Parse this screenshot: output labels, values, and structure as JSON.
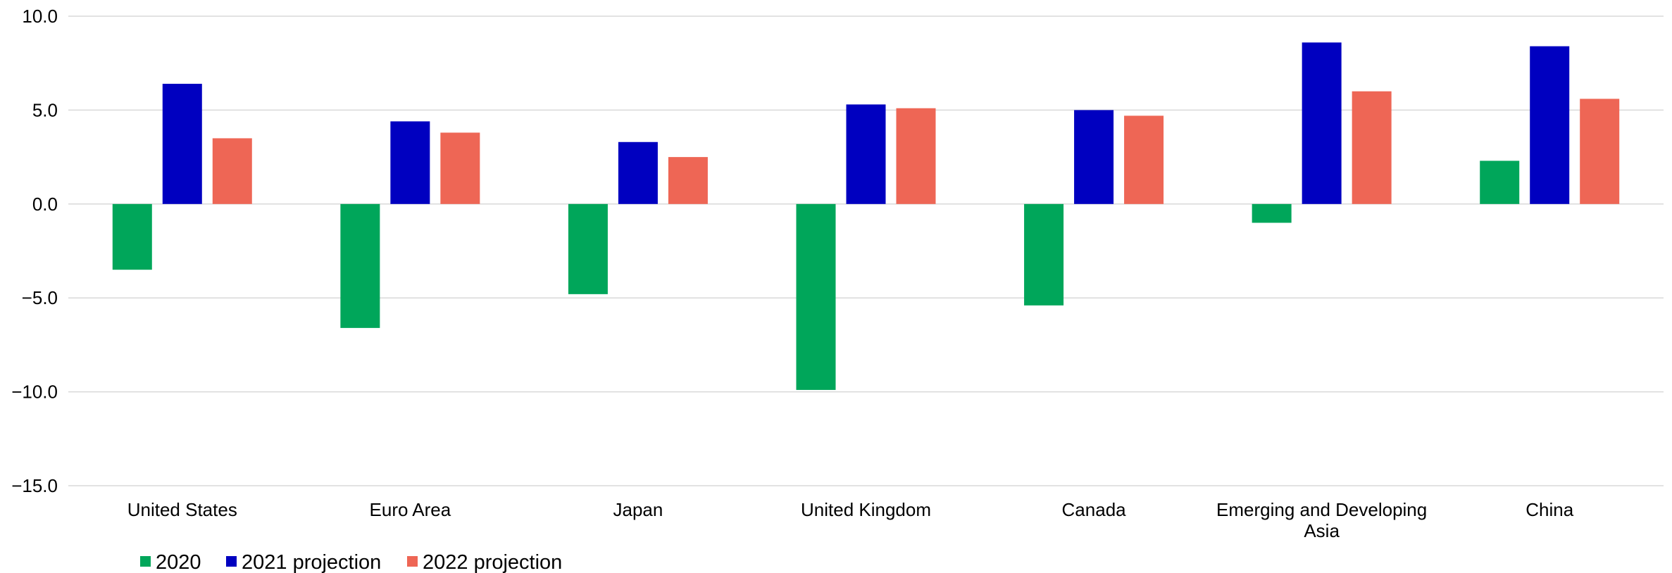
{
  "chart_data": {
    "type": "bar",
    "categories": [
      [
        "United States"
      ],
      [
        "Euro Area"
      ],
      [
        "Japan"
      ],
      [
        "United Kingdom"
      ],
      [
        "Canada"
      ],
      [
        "Emerging and Developing",
        "Asia"
      ],
      [
        "China"
      ]
    ],
    "series": [
      {
        "name": "2020",
        "color": "#00A65A",
        "values": [
          -3.5,
          -6.6,
          -4.8,
          -9.9,
          -5.4,
          -1.0,
          2.3
        ]
      },
      {
        "name": "2021 projection",
        "color": "#0000C0",
        "values": [
          6.4,
          4.4,
          3.3,
          5.3,
          5.0,
          8.6,
          8.4
        ]
      },
      {
        "name": "2022 projection",
        "color": "#EE6655",
        "values": [
          3.5,
          3.8,
          2.5,
          5.1,
          4.7,
          6.0,
          5.6
        ]
      }
    ],
    "yticks": [
      "10.0",
      "5.0",
      "0.0",
      "−5.0",
      "−10.0",
      "−15.0"
    ],
    "ytick_values": [
      10,
      5,
      0,
      -5,
      -10,
      -15
    ],
    "ylim": [
      -15,
      10
    ],
    "grid": true,
    "grid_color": "#D9D9D9",
    "legend_position": "bottom-left",
    "title": "",
    "xlabel": "",
    "ylabel": ""
  }
}
